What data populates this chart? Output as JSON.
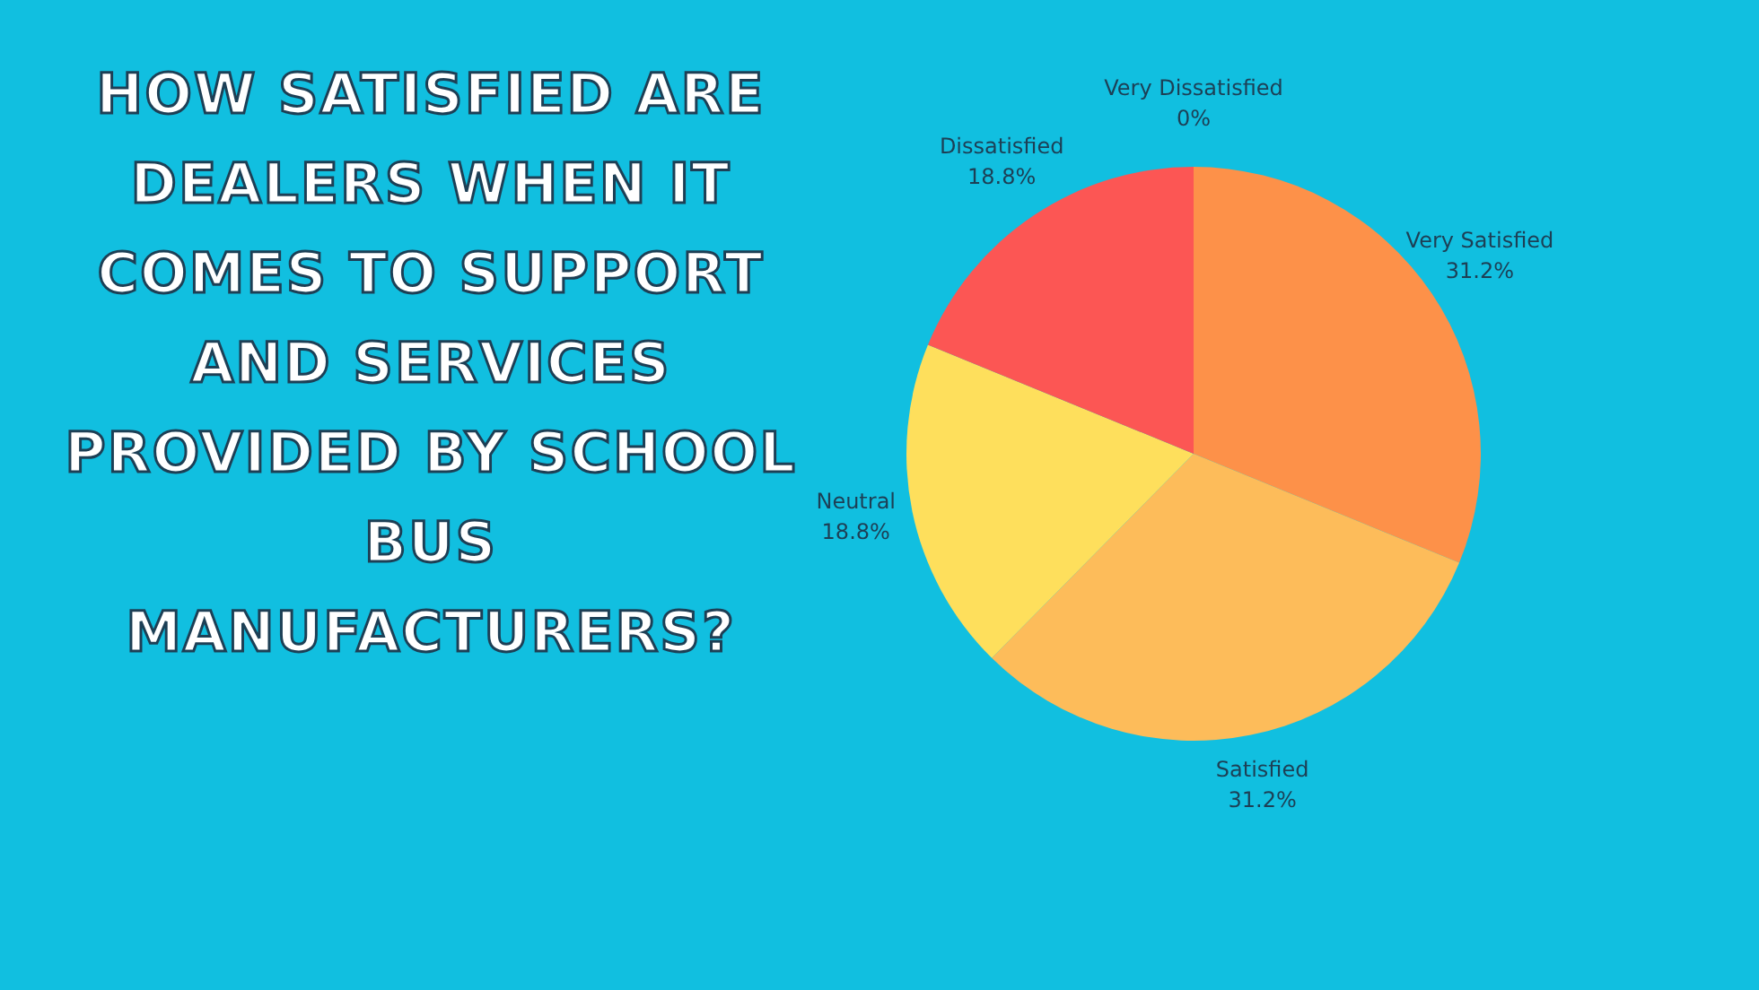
{
  "chart_data": {
    "type": "pie",
    "title": "HOW SATISFIED ARE DEALERS WHEN IT COMES TO SUPPORT AND SERVICES PROVIDED BY SCHOOL BUS MANUFACTURERS?",
    "categories": [
      "Very Satisfied",
      "Satisfied",
      "Neutral",
      "Dissatisfied",
      "Very Dissatisfied"
    ],
    "values": [
      31.2,
      31.2,
      18.8,
      18.8,
      0
    ],
    "value_labels": [
      "31.2%",
      "31.2%",
      "18.8%",
      "18.8%",
      "0%"
    ],
    "colors": [
      "#fd9149",
      "#fdbc5a",
      "#fedf5c",
      "#fc5654",
      "#9e9e9e"
    ]
  }
}
